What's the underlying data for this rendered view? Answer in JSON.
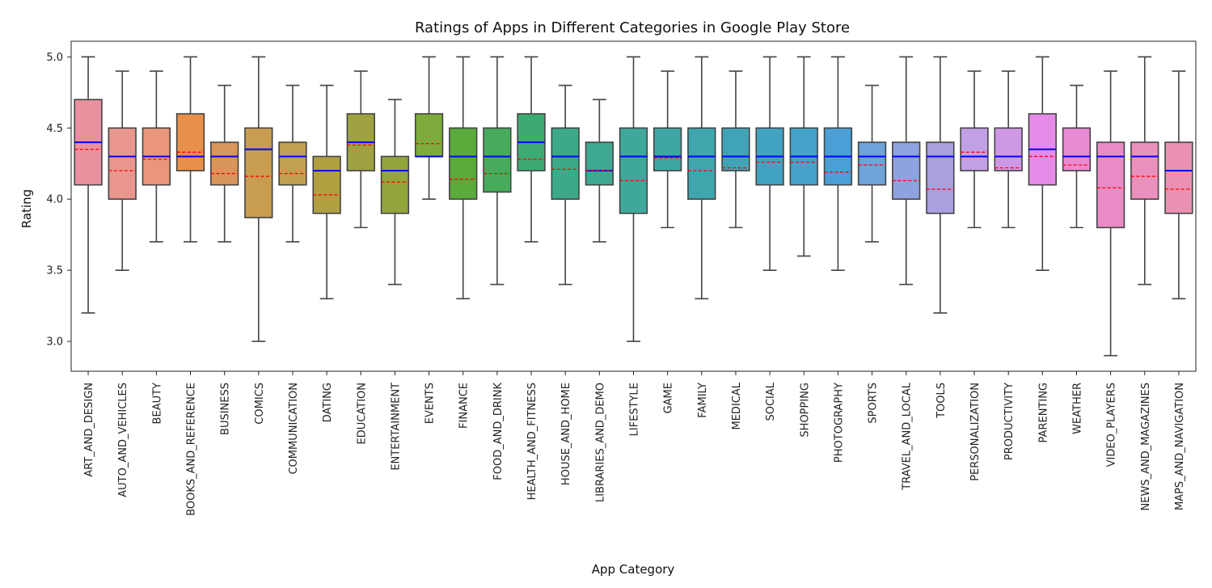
{
  "chart_data": {
    "type": "box",
    "title": "Ratings of Apps in Different Categories in Google Play Store",
    "xlabel": "App Category",
    "ylabel": "Rating",
    "ylim": [
      2.79,
      5.11
    ],
    "yticks": [
      "3.0",
      "3.5",
      "4.0",
      "4.5",
      "5.0"
    ],
    "yticks_values": [
      3.0,
      3.5,
      4.0,
      4.5,
      5.0
    ],
    "median_line_color": "#0000ff",
    "mean_line_color": "#ff0000",
    "box_edge_color": "#444444",
    "categories": [
      {
        "name": "ART_AND_DESIGN",
        "min": 3.2,
        "q1": 4.1,
        "median": 4.4,
        "q3": 4.7,
        "max": 5.0,
        "mean": 4.35,
        "color": "#e8909e"
      },
      {
        "name": "AUTO_AND_VEHICLES",
        "min": 3.5,
        "q1": 4.0,
        "median": 4.3,
        "q3": 4.5,
        "max": 4.9,
        "mean": 4.2,
        "color": "#e9968e"
      },
      {
        "name": "BEAUTY",
        "min": 3.7,
        "q1": 4.1,
        "median": 4.3,
        "q3": 4.5,
        "max": 4.9,
        "mean": 4.28,
        "color": "#e9967d"
      },
      {
        "name": "BOOKS_AND_REFERENCE",
        "min": 3.7,
        "q1": 4.2,
        "median": 4.3,
        "q3": 4.6,
        "max": 5.0,
        "mean": 4.33,
        "color": "#e8904a"
      },
      {
        "name": "BUSINESS",
        "min": 3.7,
        "q1": 4.1,
        "median": 4.3,
        "q3": 4.4,
        "max": 4.8,
        "mean": 4.18,
        "color": "#d9965b"
      },
      {
        "name": "COMICS",
        "min": 3.0,
        "q1": 3.87,
        "median": 4.35,
        "q3": 4.5,
        "max": 5.0,
        "mean": 4.16,
        "color": "#c99d4f"
      },
      {
        "name": "COMMUNICATION",
        "min": 3.7,
        "q1": 4.1,
        "median": 4.3,
        "q3": 4.4,
        "max": 4.8,
        "mean": 4.18,
        "color": "#c0a052"
      },
      {
        "name": "DATING",
        "min": 3.3,
        "q1": 3.9,
        "median": 4.2,
        "q3": 4.3,
        "max": 4.8,
        "mean": 4.03,
        "color": "#b0a040"
      },
      {
        "name": "EDUCATION",
        "min": 3.8,
        "q1": 4.2,
        "median": 4.4,
        "q3": 4.6,
        "max": 4.9,
        "mean": 4.38,
        "color": "#9ea242"
      },
      {
        "name": "ENTERTAINMENT",
        "min": 3.4,
        "q1": 3.9,
        "median": 4.2,
        "q3": 4.3,
        "max": 4.7,
        "mean": 4.12,
        "color": "#92a63c"
      },
      {
        "name": "EVENTS",
        "min": 4.0,
        "q1": 4.3,
        "median": 4.3,
        "q3": 4.6,
        "max": 5.0,
        "mean": 4.39,
        "color": "#7eab3c"
      },
      {
        "name": "FINANCE",
        "min": 3.3,
        "q1": 4.0,
        "median": 4.3,
        "q3": 4.5,
        "max": 5.0,
        "mean": 4.14,
        "color": "#5aab3c"
      },
      {
        "name": "FOOD_AND_DRINK",
        "min": 3.4,
        "q1": 4.05,
        "median": 4.3,
        "q3": 4.5,
        "max": 5.0,
        "mean": 4.18,
        "color": "#48ab5c"
      },
      {
        "name": "HEALTH_AND_FITNESS",
        "min": 3.7,
        "q1": 4.2,
        "median": 4.4,
        "q3": 4.6,
        "max": 5.0,
        "mean": 4.28,
        "color": "#3daa74"
      },
      {
        "name": "HOUSE_AND_HOME",
        "min": 3.4,
        "q1": 4.0,
        "median": 4.3,
        "q3": 4.5,
        "max": 4.8,
        "mean": 4.21,
        "color": "#3ea988"
      },
      {
        "name": "LIBRARIES_AND_DEMO",
        "min": 3.7,
        "q1": 4.1,
        "median": 4.2,
        "q3": 4.4,
        "max": 4.7,
        "mean": 4.2,
        "color": "#3fa890"
      },
      {
        "name": "LIFESTYLE",
        "min": 3.0,
        "q1": 3.9,
        "median": 4.3,
        "q3": 4.5,
        "max": 5.0,
        "mean": 4.13,
        "color": "#3ea89c"
      },
      {
        "name": "GAME",
        "min": 3.8,
        "q1": 4.2,
        "median": 4.3,
        "q3": 4.5,
        "max": 4.9,
        "mean": 4.29,
        "color": "#3ea7a4"
      },
      {
        "name": "FAMILY",
        "min": 3.3,
        "q1": 4.0,
        "median": 4.3,
        "q3": 4.5,
        "max": 5.0,
        "mean": 4.2,
        "color": "#3fa6ad"
      },
      {
        "name": "MEDICAL",
        "min": 3.8,
        "q1": 4.2,
        "median": 4.3,
        "q3": 4.5,
        "max": 4.9,
        "mean": 4.22,
        "color": "#40a4b6"
      },
      {
        "name": "SOCIAL",
        "min": 3.5,
        "q1": 4.1,
        "median": 4.3,
        "q3": 4.5,
        "max": 5.0,
        "mean": 4.26,
        "color": "#42a3c0"
      },
      {
        "name": "SHOPPING",
        "min": 3.6,
        "q1": 4.1,
        "median": 4.3,
        "q3": 4.5,
        "max": 5.0,
        "mean": 4.26,
        "color": "#45a2c9"
      },
      {
        "name": "PHOTOGRAPHY",
        "min": 3.5,
        "q1": 4.1,
        "median": 4.3,
        "q3": 4.5,
        "max": 5.0,
        "mean": 4.19,
        "color": "#4aa0d6"
      },
      {
        "name": "SPORTS",
        "min": 3.7,
        "q1": 4.1,
        "median": 4.3,
        "q3": 4.4,
        "max": 4.8,
        "mean": 4.24,
        "color": "#6ea3dc"
      },
      {
        "name": "TRAVEL_AND_LOCAL",
        "min": 3.4,
        "q1": 4.0,
        "median": 4.3,
        "q3": 4.4,
        "max": 5.0,
        "mean": 4.13,
        "color": "#8ea2df"
      },
      {
        "name": "TOOLS",
        "min": 3.2,
        "q1": 3.9,
        "median": 4.3,
        "q3": 4.4,
        "max": 5.0,
        "mean": 4.07,
        "color": "#a9a0e0"
      },
      {
        "name": "PERSONALIZATION",
        "min": 3.8,
        "q1": 4.2,
        "median": 4.3,
        "q3": 4.5,
        "max": 4.9,
        "mean": 4.33,
        "color": "#c1a0e6"
      },
      {
        "name": "PRODUCTIVITY",
        "min": 3.8,
        "q1": 4.2,
        "median": 4.3,
        "q3": 4.5,
        "max": 4.9,
        "mean": 4.22,
        "color": "#cf98e6"
      },
      {
        "name": "PARENTING",
        "min": 3.5,
        "q1": 4.1,
        "median": 4.35,
        "q3": 4.6,
        "max": 5.0,
        "mean": 4.3,
        "color": "#e68ae8"
      },
      {
        "name": "WEATHER",
        "min": 3.8,
        "q1": 4.2,
        "median": 4.3,
        "q3": 4.5,
        "max": 4.8,
        "mean": 4.24,
        "color": "#e88ad4"
      },
      {
        "name": "VIDEO_PLAYERS",
        "min": 2.9,
        "q1": 3.8,
        "median": 4.3,
        "q3": 4.4,
        "max": 4.9,
        "mean": 4.08,
        "color": "#e98cc6"
      },
      {
        "name": "NEWS_AND_MAGAZINES",
        "min": 3.4,
        "q1": 4.0,
        "median": 4.3,
        "q3": 4.4,
        "max": 5.0,
        "mean": 4.16,
        "color": "#ea90bc"
      },
      {
        "name": "MAPS_AND_NAVIGATION",
        "min": 3.3,
        "q1": 3.9,
        "median": 4.2,
        "q3": 4.4,
        "max": 4.9,
        "mean": 4.07,
        "color": "#ea90b2"
      }
    ]
  }
}
